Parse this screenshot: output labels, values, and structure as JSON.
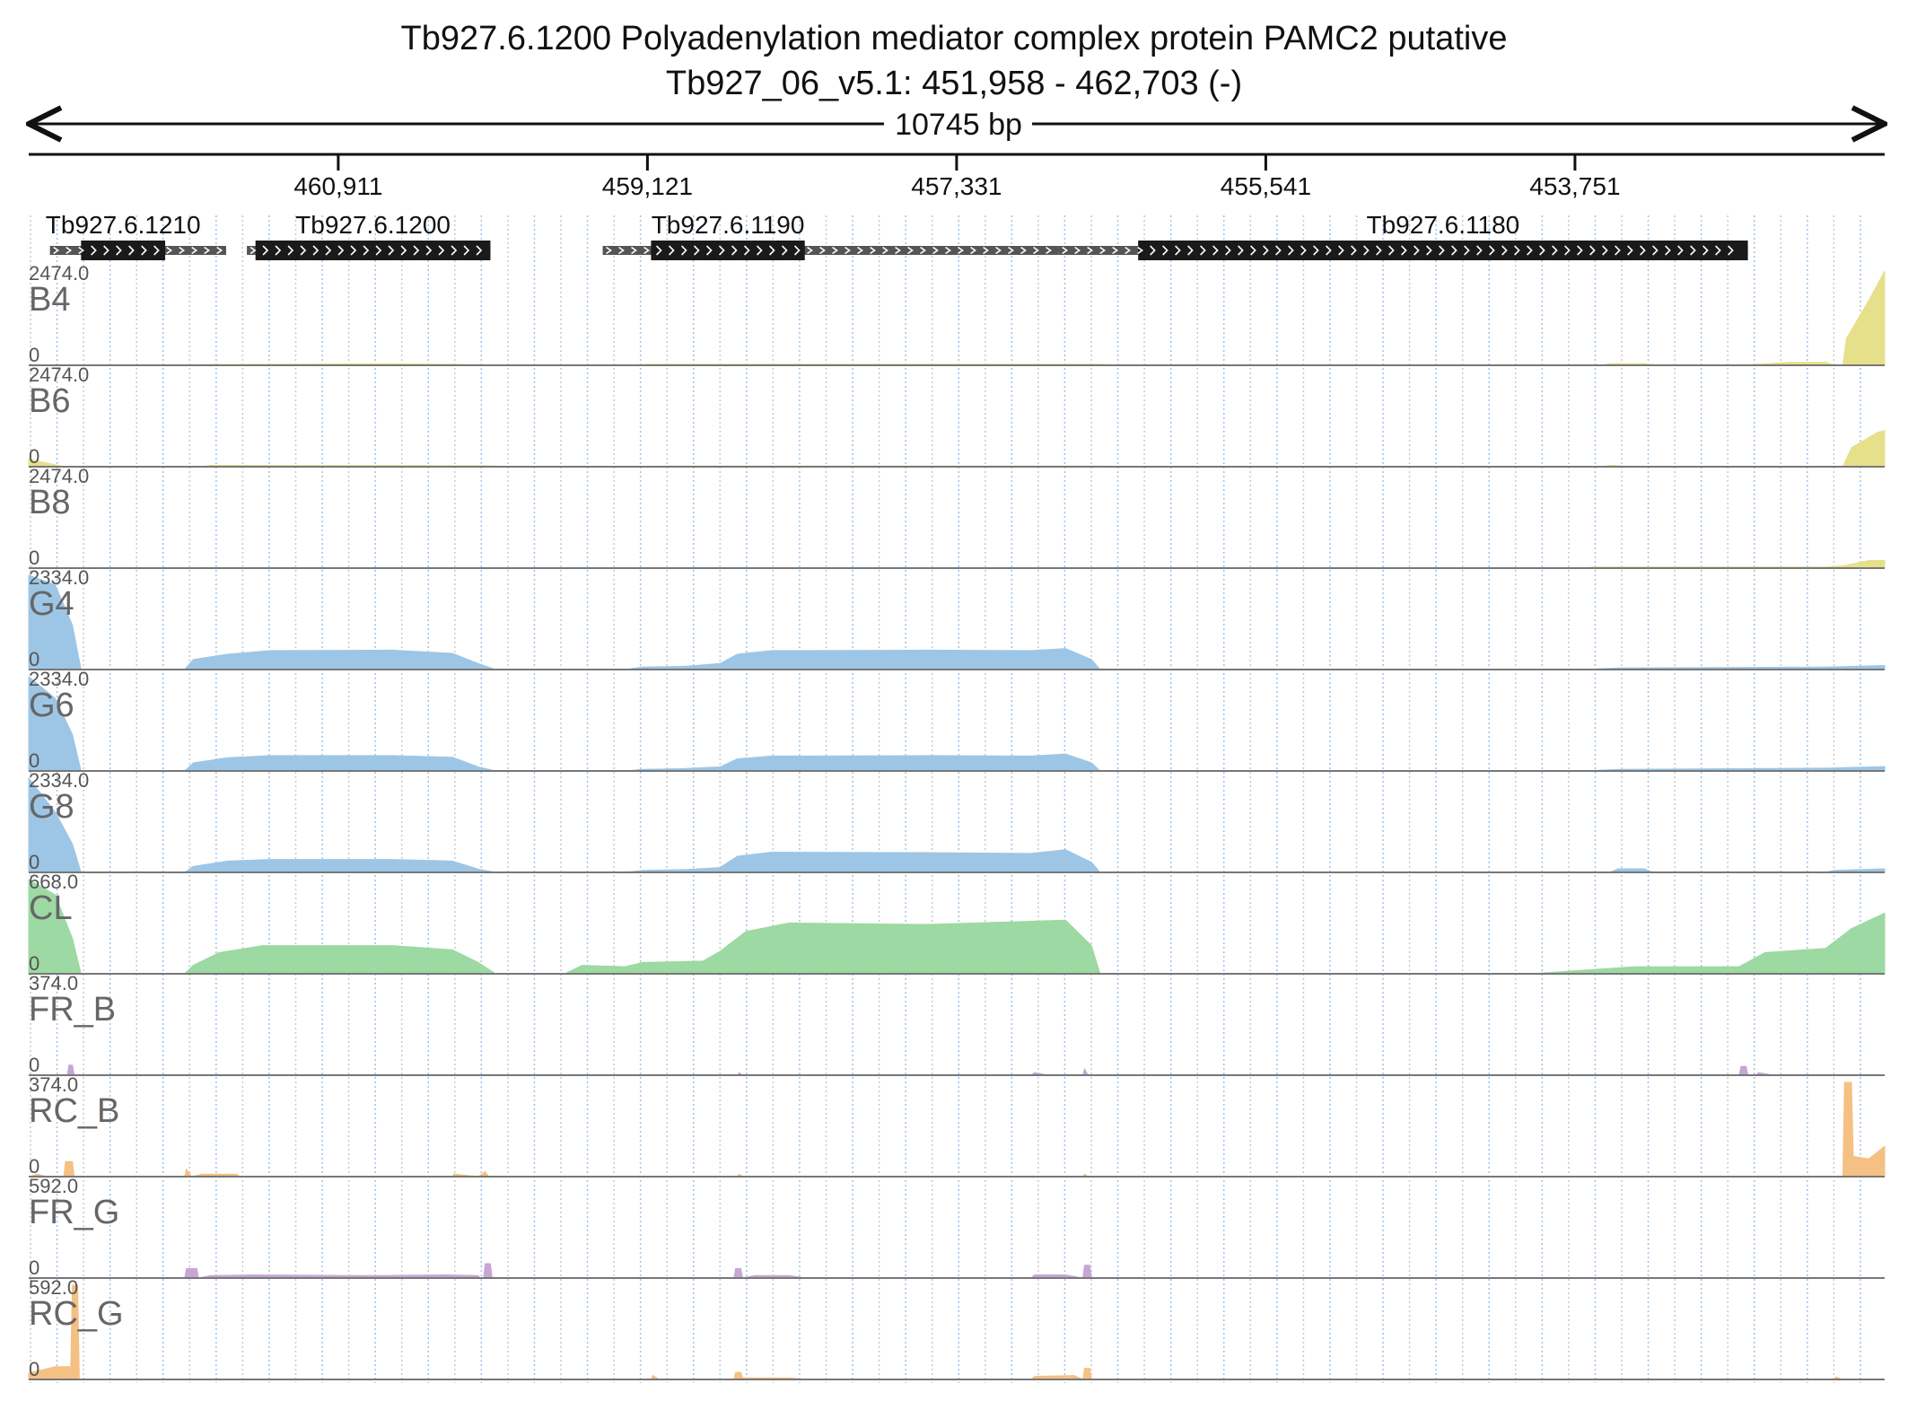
{
  "title": {
    "line1": "Tb927.6.1200  Polyadenylation mediator complex protein PAMC2  putative",
    "line2": "Tb927_06_v5.1: 451,958 - 462,703 (-)"
  },
  "scale_label": "10745 bp",
  "chart_data": {
    "type": "area",
    "region_start": 451958,
    "region_end": 462703,
    "strand": "-",
    "length_bp": 10745,
    "axis_ticks": [
      460911,
      459121,
      457331,
      455541,
      453751
    ],
    "axis_tick_labels": [
      "460,911",
      "459,121",
      "457,331",
      "455,541",
      "453,751"
    ],
    "genes": [
      {
        "name": "Tb927.6.1210",
        "utr": [
          462580,
          461560
        ],
        "cds": [
          462400,
          461913
        ]
      },
      {
        "name": "Tb927.6.1200",
        "utr": [
          461440,
          460030
        ],
        "cds": [
          461390,
          460030
        ]
      },
      {
        "name": "Tb927.6.1190",
        "utr": [
          459380,
          455960
        ],
        "cds": [
          459100,
          458210
        ]
      },
      {
        "name": "Tb927.6.1180",
        "utr": [
          456740,
          452750
        ],
        "cds": [
          456280,
          452750
        ]
      }
    ],
    "tracks": [
      {
        "name": "B4",
        "max": 2474.0,
        "max_label": "2474.0",
        "min_label": "0",
        "color": "#e6e08a",
        "profile": [
          [
            462703,
            0
          ],
          [
            461800,
            0
          ],
          [
            461700,
            20
          ],
          [
            460600,
            40
          ],
          [
            460100,
            20
          ],
          [
            459800,
            0
          ],
          [
            459300,
            0
          ],
          [
            459100,
            25
          ],
          [
            456500,
            25
          ],
          [
            456400,
            0
          ],
          [
            453600,
            0
          ],
          [
            453550,
            45
          ],
          [
            453350,
            45
          ],
          [
            453250,
            0
          ],
          [
            452800,
            0
          ],
          [
            452500,
            80
          ],
          [
            452300,
            80
          ],
          [
            452250,
            0
          ],
          [
            452200,
            0
          ],
          [
            452180,
            700
          ],
          [
            452050,
            1700
          ],
          [
            451958,
            2474
          ]
        ]
      },
      {
        "name": "B6",
        "max": 2474.0,
        "max_label": "2474.0",
        "min_label": "0",
        "color": "#e6e08a",
        "profile": [
          [
            462703,
            200
          ],
          [
            462500,
            0
          ],
          [
            461700,
            0
          ],
          [
            461650,
            35
          ],
          [
            460100,
            25
          ],
          [
            459800,
            0
          ],
          [
            459100,
            0
          ],
          [
            459050,
            20
          ],
          [
            456500,
            20
          ],
          [
            456400,
            0
          ],
          [
            453600,
            0
          ],
          [
            453550,
            35
          ],
          [
            453400,
            0
          ],
          [
            452200,
            0
          ],
          [
            452150,
            500
          ],
          [
            452000,
            900
          ],
          [
            451958,
            950
          ]
        ]
      },
      {
        "name": "B8",
        "max": 2474.0,
        "max_label": "2474.0",
        "min_label": "0",
        "color": "#e6e08a",
        "profile": [
          [
            462703,
            0
          ],
          [
            461750,
            0
          ],
          [
            461700,
            15
          ],
          [
            460100,
            10
          ],
          [
            459900,
            0
          ],
          [
            453700,
            0
          ],
          [
            453650,
            30
          ],
          [
            452300,
            30
          ],
          [
            452200,
            60
          ],
          [
            452050,
            200
          ],
          [
            451958,
            200
          ]
        ]
      },
      {
        "name": "G4",
        "max": 2334.0,
        "max_label": "2334.0",
        "min_label": "0",
        "color": "#9dc6e6",
        "profile": [
          [
            462703,
            2334
          ],
          [
            462550,
            2100
          ],
          [
            462450,
            1100
          ],
          [
            462400,
            0
          ],
          [
            461800,
            0
          ],
          [
            461750,
            250
          ],
          [
            461550,
            380
          ],
          [
            461300,
            470
          ],
          [
            460600,
            480
          ],
          [
            460250,
            400
          ],
          [
            460100,
            150
          ],
          [
            460000,
            0
          ],
          [
            459250,
            0
          ],
          [
            459150,
            60
          ],
          [
            458900,
            80
          ],
          [
            458700,
            150
          ],
          [
            458600,
            380
          ],
          [
            458400,
            470
          ],
          [
            457500,
            480
          ],
          [
            456900,
            470
          ],
          [
            456700,
            520
          ],
          [
            456550,
            250
          ],
          [
            456500,
            0
          ],
          [
            453700,
            0
          ],
          [
            453500,
            40
          ],
          [
            452300,
            60
          ],
          [
            451958,
            100
          ]
        ]
      },
      {
        "name": "G6",
        "max": 2334.0,
        "max_label": "2334.0",
        "min_label": "0",
        "color": "#9dc6e6",
        "profile": [
          [
            462703,
            2334
          ],
          [
            462550,
            1800
          ],
          [
            462450,
            900
          ],
          [
            462400,
            0
          ],
          [
            461800,
            0
          ],
          [
            461750,
            200
          ],
          [
            461550,
            330
          ],
          [
            461300,
            380
          ],
          [
            460600,
            380
          ],
          [
            460250,
            340
          ],
          [
            460100,
            100
          ],
          [
            460000,
            0
          ],
          [
            459250,
            0
          ],
          [
            459150,
            40
          ],
          [
            458900,
            60
          ],
          [
            458700,
            100
          ],
          [
            458600,
            300
          ],
          [
            458400,
            370
          ],
          [
            457500,
            380
          ],
          [
            456900,
            370
          ],
          [
            456700,
            420
          ],
          [
            456550,
            200
          ],
          [
            456500,
            0
          ],
          [
            453700,
            0
          ],
          [
            453500,
            40
          ],
          [
            452300,
            70
          ],
          [
            451958,
            110
          ]
        ]
      },
      {
        "name": "G8",
        "max": 2334.0,
        "max_label": "2334.0",
        "min_label": "0",
        "color": "#9dc6e6",
        "profile": [
          [
            462703,
            2334
          ],
          [
            462550,
            1500
          ],
          [
            462450,
            700
          ],
          [
            462400,
            0
          ],
          [
            461800,
            0
          ],
          [
            461750,
            150
          ],
          [
            461550,
            280
          ],
          [
            461300,
            320
          ],
          [
            460600,
            320
          ],
          [
            460250,
            280
          ],
          [
            460100,
            80
          ],
          [
            460000,
            0
          ],
          [
            459250,
            0
          ],
          [
            459150,
            50
          ],
          [
            458900,
            70
          ],
          [
            458700,
            120
          ],
          [
            458600,
            400
          ],
          [
            458400,
            500
          ],
          [
            457500,
            490
          ],
          [
            456900,
            470
          ],
          [
            456700,
            560
          ],
          [
            456550,
            250
          ],
          [
            456500,
            0
          ],
          [
            453550,
            0
          ],
          [
            453500,
            90
          ],
          [
            453350,
            90
          ],
          [
            453300,
            0
          ],
          [
            452300,
            0
          ],
          [
            452250,
            50
          ],
          [
            451958,
            90
          ]
        ]
      },
      {
        "name": "CL",
        "max": 668.0,
        "max_label": "668.0",
        "min_label": "0",
        "color": "#9dd9a2",
        "profile": [
          [
            462703,
            668
          ],
          [
            462550,
            560
          ],
          [
            462450,
            250
          ],
          [
            462400,
            0
          ],
          [
            461800,
            0
          ],
          [
            461750,
            60
          ],
          [
            461600,
            150
          ],
          [
            461350,
            200
          ],
          [
            460600,
            200
          ],
          [
            460250,
            170
          ],
          [
            460100,
            80
          ],
          [
            460000,
            0
          ],
          [
            459600,
            0
          ],
          [
            459500,
            60
          ],
          [
            459250,
            50
          ],
          [
            459150,
            80
          ],
          [
            458800,
            90
          ],
          [
            458700,
            160
          ],
          [
            458550,
            300
          ],
          [
            458300,
            360
          ],
          [
            457500,
            350
          ],
          [
            456700,
            380
          ],
          [
            456550,
            200
          ],
          [
            456500,
            0
          ],
          [
            454000,
            0
          ],
          [
            453650,
            30
          ],
          [
            453400,
            50
          ],
          [
            452800,
            50
          ],
          [
            452650,
            150
          ],
          [
            452300,
            180
          ],
          [
            452150,
            320
          ],
          [
            451958,
            430
          ]
        ]
      },
      {
        "name": "FR_B",
        "max": 374.0,
        "max_label": "374.0",
        "min_label": "0",
        "color": "#c6a6d4",
        "profile": [
          [
            462703,
            0
          ],
          [
            462480,
            0
          ],
          [
            462470,
            40
          ],
          [
            462450,
            40
          ],
          [
            462440,
            0
          ],
          [
            458600,
            0
          ],
          [
            458590,
            10
          ],
          [
            458570,
            0
          ],
          [
            456900,
            0
          ],
          [
            456880,
            10
          ],
          [
            456800,
            0
          ],
          [
            456600,
            0
          ],
          [
            456590,
            25
          ],
          [
            456570,
            0
          ],
          [
            452800,
            0
          ],
          [
            452790,
            35
          ],
          [
            452760,
            35
          ],
          [
            452750,
            0
          ],
          [
            452700,
            0
          ],
          [
            452690,
            10
          ],
          [
            452600,
            0
          ],
          [
            451958,
            0
          ]
        ]
      },
      {
        "name": "RC_B",
        "max": 374.0,
        "max_label": "374.0",
        "min_label": "0",
        "color": "#f5c084",
        "profile": [
          [
            462703,
            0
          ],
          [
            462650,
            10
          ],
          [
            462600,
            0
          ],
          [
            462500,
            0
          ],
          [
            462490,
            60
          ],
          [
            462450,
            60
          ],
          [
            462440,
            0
          ],
          [
            461800,
            0
          ],
          [
            461790,
            30
          ],
          [
            461760,
            0
          ],
          [
            461700,
            10
          ],
          [
            461500,
            10
          ],
          [
            461480,
            0
          ],
          [
            460250,
            0
          ],
          [
            460240,
            10
          ],
          [
            460100,
            0
          ],
          [
            460060,
            20
          ],
          [
            460040,
            0
          ],
          [
            458600,
            0
          ],
          [
            458590,
            10
          ],
          [
            458570,
            0
          ],
          [
            456600,
            0
          ],
          [
            456590,
            10
          ],
          [
            456570,
            0
          ],
          [
            452200,
            0
          ],
          [
            452190,
            374
          ],
          [
            452150,
            374
          ],
          [
            452140,
            80
          ],
          [
            452050,
            70
          ],
          [
            451958,
            120
          ]
        ]
      },
      {
        "name": "FR_G",
        "max": 592.0,
        "max_label": "592.0",
        "min_label": "0",
        "color": "#c6a6d4",
        "profile": [
          [
            462703,
            0
          ],
          [
            461800,
            0
          ],
          [
            461790,
            60
          ],
          [
            461730,
            60
          ],
          [
            461720,
            0
          ],
          [
            461650,
            15
          ],
          [
            461400,
            20
          ],
          [
            460700,
            15
          ],
          [
            460300,
            20
          ],
          [
            460100,
            15
          ],
          [
            460090,
            0
          ],
          [
            460070,
            0
          ],
          [
            460060,
            90
          ],
          [
            460030,
            90
          ],
          [
            460020,
            0
          ],
          [
            458620,
            0
          ],
          [
            458610,
            60
          ],
          [
            458580,
            60
          ],
          [
            458570,
            0
          ],
          [
            458500,
            15
          ],
          [
            458300,
            15
          ],
          [
            458200,
            0
          ],
          [
            456900,
            0
          ],
          [
            456880,
            20
          ],
          [
            456700,
            20
          ],
          [
            456600,
            0
          ],
          [
            456590,
            80
          ],
          [
            456560,
            80
          ],
          [
            456550,
            0
          ],
          [
            451958,
            0
          ]
        ]
      },
      {
        "name": "RC_G",
        "max": 592.0,
        "max_label": "592.0",
        "min_label": "0",
        "color": "#f5c084",
        "profile": [
          [
            462703,
            40
          ],
          [
            462550,
            80
          ],
          [
            462460,
            80
          ],
          [
            462450,
            592
          ],
          [
            462420,
            592
          ],
          [
            462410,
            0
          ],
          [
            459100,
            0
          ],
          [
            459090,
            25
          ],
          [
            459050,
            0
          ],
          [
            458620,
            0
          ],
          [
            458610,
            45
          ],
          [
            458580,
            45
          ],
          [
            458570,
            10
          ],
          [
            458300,
            10
          ],
          [
            458200,
            0
          ],
          [
            456900,
            0
          ],
          [
            456880,
            20
          ],
          [
            456650,
            25
          ],
          [
            456600,
            0
          ],
          [
            456590,
            70
          ],
          [
            456560,
            70
          ],
          [
            456550,
            0
          ],
          [
            452250,
            0
          ],
          [
            452240,
            15
          ],
          [
            452200,
            0
          ],
          [
            451958,
            0
          ]
        ]
      }
    ]
  }
}
